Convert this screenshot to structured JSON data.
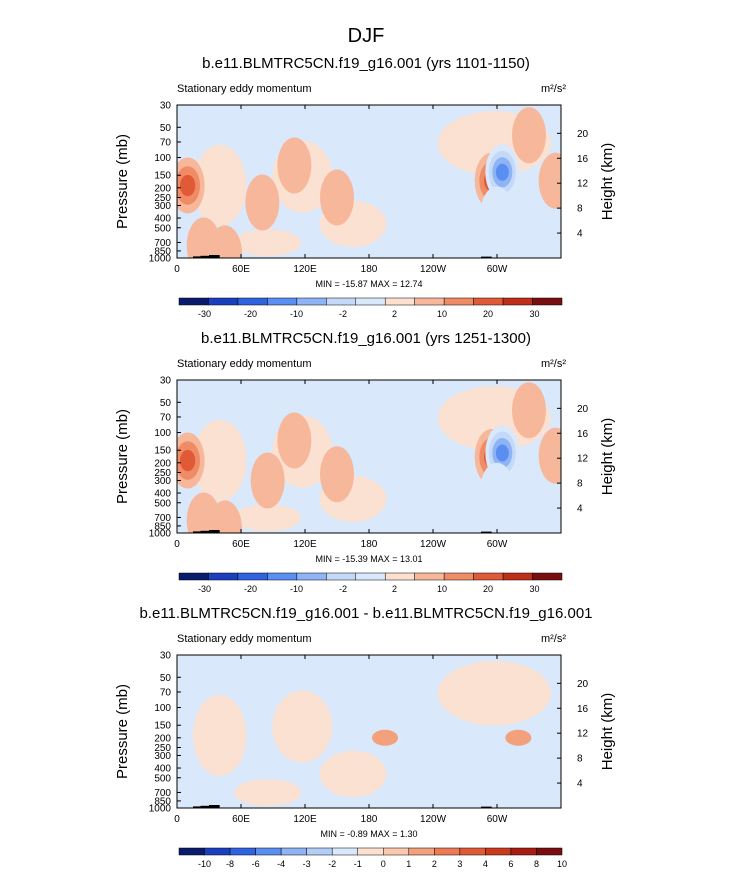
{
  "figure_title": "DJF",
  "colors": {
    "div13": [
      "#0a1b6e",
      "#1a3fbf",
      "#2f63e0",
      "#5b8ef2",
      "#8eb4f5",
      "#c4d9f8",
      "#d9e8fb",
      "#fde0cf",
      "#f7b79b",
      "#ef8c66",
      "#e05a37",
      "#bf2e18",
      "#7a0d0d"
    ],
    "div15": [
      "#0a1b6e",
      "#1a3fbf",
      "#2f63e0",
      "#5b8ef2",
      "#8eb4f5",
      "#b3cdf7",
      "#d9e8fb",
      "#fde0cf",
      "#f9c8ae",
      "#f3a07c",
      "#ec7a54",
      "#e05a37",
      "#cc3a1e",
      "#a81c12",
      "#7a0d0d"
    ],
    "topo": "#000000"
  },
  "chart_data": [
    {
      "type": "heatmap",
      "title": "b.e11.BLMTRC5CN.f19_g16.001 (yrs 1101-1150)",
      "subtitle": "Stationary eddy momentum",
      "units": "m²/s²",
      "ylabel": "Pressure (mb)",
      "ylabel_right": "Height (km)",
      "x_ticks": [
        "0",
        "60E",
        "120E",
        "180",
        "120W",
        "60W"
      ],
      "y_ticks": [
        "30",
        "50",
        "70",
        "100",
        "150",
        "200",
        "250",
        "300",
        "400",
        "500",
        "700",
        "850",
        "1000"
      ],
      "height_ticks": [
        "20",
        "16",
        "12",
        "8",
        "4"
      ],
      "stats": "MIN = -15.87  MAX =  12.74",
      "colorbar_labels": [
        "-30",
        "-20",
        "-10",
        "-2",
        "2",
        "10",
        "20",
        "30"
      ],
      "contour_levels": [
        -30,
        -25,
        -20,
        -15,
        -10,
        -5,
        -2,
        2,
        5,
        10,
        15,
        20,
        25,
        30
      ],
      "blobs": [
        {
          "lon": 10,
          "p": 190,
          "value": 12.7
        },
        {
          "lon": 295,
          "p": 170,
          "value": 10
        },
        {
          "lon": 200,
          "p": 180,
          "value": -4
        },
        {
          "lon": 305,
          "p": 140,
          "value": -15.9
        },
        {
          "lon": 300,
          "p": 370,
          "value": -2.5
        },
        {
          "lon": 355,
          "p": 170,
          "value": 3
        },
        {
          "lon": 45,
          "p": 900,
          "value": 4
        },
        {
          "lon": 110,
          "p": 120,
          "value": 2.5
        },
        {
          "lon": 150,
          "p": 250,
          "value": 2.2
        },
        {
          "lon": 80,
          "p": 280,
          "value": 2.2
        },
        {
          "lon": 330,
          "p": 60,
          "value": 2.3
        },
        {
          "lon": 25,
          "p": 750,
          "value": 2.5
        }
      ]
    },
    {
      "type": "heatmap",
      "title": "b.e11.BLMTRC5CN.f19_g16.001 (yrs 1251-1300)",
      "subtitle": "Stationary eddy momentum",
      "units": "m²/s²",
      "ylabel": "Pressure (mb)",
      "ylabel_right": "Height (km)",
      "x_ticks": [
        "0",
        "60E",
        "120E",
        "180",
        "120W",
        "60W"
      ],
      "y_ticks": [
        "30",
        "50",
        "70",
        "100",
        "150",
        "200",
        "250",
        "300",
        "400",
        "500",
        "700",
        "850",
        "1000"
      ],
      "height_ticks": [
        "20",
        "16",
        "12",
        "8",
        "4"
      ],
      "stats": "MIN = -15.39  MAX =  13.01",
      "colorbar_labels": [
        "-30",
        "-20",
        "-10",
        "-2",
        "2",
        "10",
        "20",
        "30"
      ],
      "contour_levels": [
        -30,
        -25,
        -20,
        -15,
        -10,
        -5,
        -2,
        2,
        5,
        10,
        15,
        20,
        25,
        30
      ],
      "blobs": [
        {
          "lon": 10,
          "p": 190,
          "value": 13.0
        },
        {
          "lon": 295,
          "p": 175,
          "value": 10
        },
        {
          "lon": 200,
          "p": 200,
          "value": -4.5
        },
        {
          "lon": 305,
          "p": 160,
          "value": -15.4
        },
        {
          "lon": 300,
          "p": 380,
          "value": -2.5
        },
        {
          "lon": 355,
          "p": 170,
          "value": 3
        },
        {
          "lon": 45,
          "p": 900,
          "value": 4
        },
        {
          "lon": 110,
          "p": 120,
          "value": 2.6
        },
        {
          "lon": 150,
          "p": 260,
          "value": 2.2
        },
        {
          "lon": 85,
          "p": 300,
          "value": 2.2
        },
        {
          "lon": 330,
          "p": 60,
          "value": 2.3
        },
        {
          "lon": 25,
          "p": 750,
          "value": 2.5
        }
      ]
    },
    {
      "type": "heatmap",
      "title": "b.e11.BLMTRC5CN.f19_g16.001 - b.e11.BLMTRC5CN.f19_g16.001",
      "subtitle": "Stationary eddy momentum",
      "units": "m²/s²",
      "ylabel": "Pressure (mb)",
      "ylabel_right": "Height (km)",
      "x_ticks": [
        "0",
        "60E",
        "120E",
        "180",
        "120W",
        "60W"
      ],
      "y_ticks": [
        "30",
        "50",
        "70",
        "100",
        "150",
        "200",
        "250",
        "300",
        "400",
        "500",
        "700",
        "850",
        "1000"
      ],
      "height_ticks": [
        "20",
        "16",
        "12",
        "8",
        "4"
      ],
      "stats": "MIN = -0.89  MAX =  1.30",
      "colorbar_labels": [
        "-10",
        "-8",
        "-6",
        "-4",
        "-3",
        "-2",
        "-1",
        "0",
        "1",
        "2",
        "3",
        "4",
        "6",
        "8",
        "10"
      ],
      "contour_levels": [
        -10,
        -8,
        -6,
        -4,
        -3,
        -2,
        -1,
        0,
        1,
        2,
        3,
        4,
        6,
        8,
        10
      ],
      "blobs": [
        {
          "lon": 195,
          "p": 200,
          "value": 1.2
        },
        {
          "lon": 320,
          "p": 200,
          "value": 1.3
        },
        {
          "lon": 230,
          "p": 300,
          "value": -0.6
        },
        {
          "lon": 60,
          "p": 400,
          "value": -0.5
        }
      ]
    }
  ]
}
